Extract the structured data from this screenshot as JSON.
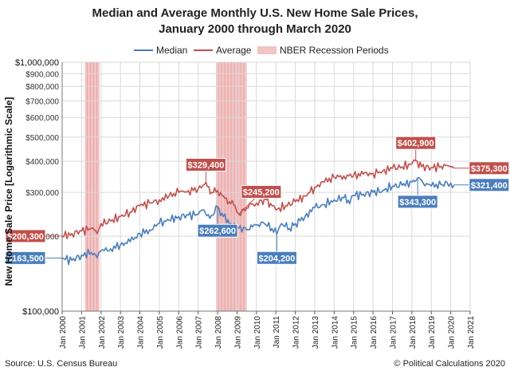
{
  "chart_data": {
    "type": "line",
    "title_line1": "Median and Average Monthly U.S. New Home Sale Prices,",
    "title_line2": "January 2000 through March 2020",
    "ylabel": "New Home Sale Price [Logarithmic Scale]",
    "xlabel": "",
    "y_scale": "log",
    "ylim": [
      100000,
      1000000
    ],
    "y_ticks": [
      {
        "value": 100000,
        "label": "$100,000"
      },
      {
        "value": 200000,
        "label": "$200,000"
      },
      {
        "value": 300000,
        "label": "$300,000"
      },
      {
        "value": 400000,
        "label": "$400,000"
      },
      {
        "value": 500000,
        "label": "$500,000"
      },
      {
        "value": 600000,
        "label": "$600,000"
      },
      {
        "value": 700000,
        "label": "$700,000"
      },
      {
        "value": 800000,
        "label": "$800,000"
      },
      {
        "value": 900000,
        "label": "$900,000"
      },
      {
        "value": 1000000,
        "label": "$1,000,000"
      }
    ],
    "x_ticks": [
      "Jan 2000",
      "Jan 2001",
      "Jan 2002",
      "Jan 2003",
      "Jan 2004",
      "Jan 2005",
      "Jan 2006",
      "Jan 2007",
      "Jan 2008",
      "Jan 2009",
      "Jan 2010",
      "Jan 2011",
      "Jan 2012",
      "Jan 2013",
      "Jan 2014",
      "Jan 2015",
      "Jan 2016",
      "Jan 2017",
      "Jan 2018",
      "Jan 2019",
      "Jan 2020",
      "Jan 2021"
    ],
    "xlim": [
      2000.0,
      2021.0
    ],
    "grid": true,
    "legend_position": "top",
    "legend": [
      "Median",
      "Average",
      "NBER Recession Periods"
    ],
    "recessions": [
      {
        "start": 2001.17,
        "end": 2001.92
      },
      {
        "start": 2007.92,
        "end": 2009.5
      }
    ],
    "series": [
      {
        "name": "Median",
        "color": "#4a7ebb",
        "points": [
          [
            2000.0,
            163500
          ],
          [
            2000.5,
            160000
          ],
          [
            2001.0,
            168000
          ],
          [
            2001.5,
            172000
          ],
          [
            2001.8,
            164000
          ],
          [
            2002.0,
            175000
          ],
          [
            2002.5,
            178000
          ],
          [
            2003.0,
            185000
          ],
          [
            2003.5,
            190000
          ],
          [
            2004.0,
            205000
          ],
          [
            2004.5,
            212000
          ],
          [
            2005.0,
            225000
          ],
          [
            2005.5,
            232000
          ],
          [
            2006.0,
            240000
          ],
          [
            2006.5,
            243000
          ],
          [
            2007.0,
            245000
          ],
          [
            2007.3,
            255000
          ],
          [
            2007.6,
            236000
          ],
          [
            2008.0,
            262600
          ],
          [
            2008.3,
            240000
          ],
          [
            2008.7,
            225000
          ],
          [
            2009.0,
            218000
          ],
          [
            2009.5,
            212000
          ],
          [
            2009.8,
            218000
          ],
          [
            2010.0,
            222000
          ],
          [
            2010.4,
            225000
          ],
          [
            2010.8,
            215000
          ],
          [
            2011.05,
            204200
          ],
          [
            2011.3,
            225000
          ],
          [
            2011.7,
            215000
          ],
          [
            2012.0,
            225000
          ],
          [
            2012.5,
            240000
          ],
          [
            2013.0,
            260000
          ],
          [
            2013.5,
            268000
          ],
          [
            2014.0,
            280000
          ],
          [
            2014.5,
            285000
          ],
          [
            2014.8,
            270000
          ],
          [
            2015.0,
            292000
          ],
          [
            2015.5,
            295000
          ],
          [
            2016.0,
            300000
          ],
          [
            2016.5,
            305000
          ],
          [
            2017.0,
            318000
          ],
          [
            2017.5,
            320000
          ],
          [
            2018.0,
            330000
          ],
          [
            2018.3,
            343300
          ],
          [
            2018.6,
            325000
          ],
          [
            2019.0,
            318000
          ],
          [
            2019.5,
            322000
          ],
          [
            2019.8,
            330000
          ],
          [
            2020.0,
            327000
          ],
          [
            2020.17,
            321400
          ]
        ]
      },
      {
        "name": "Average",
        "color": "#c0504d",
        "points": [
          [
            2000.0,
            200300
          ],
          [
            2000.5,
            205000
          ],
          [
            2001.0,
            210000
          ],
          [
            2001.5,
            215000
          ],
          [
            2001.8,
            205000
          ],
          [
            2002.0,
            225000
          ],
          [
            2002.5,
            230000
          ],
          [
            2003.0,
            240000
          ],
          [
            2003.5,
            250000
          ],
          [
            2004.0,
            265000
          ],
          [
            2004.5,
            272000
          ],
          [
            2005.0,
            280000
          ],
          [
            2005.5,
            290000
          ],
          [
            2006.0,
            300000
          ],
          [
            2006.5,
            305000
          ],
          [
            2007.0,
            310000
          ],
          [
            2007.4,
            329400
          ],
          [
            2007.7,
            300000
          ],
          [
            2008.0,
            305000
          ],
          [
            2008.3,
            290000
          ],
          [
            2008.6,
            275000
          ],
          [
            2008.9,
            265000
          ],
          [
            2009.1,
            245200
          ],
          [
            2009.5,
            260000
          ],
          [
            2009.8,
            270000
          ],
          [
            2010.0,
            272000
          ],
          [
            2010.5,
            280000
          ],
          [
            2010.8,
            265000
          ],
          [
            2011.0,
            255000
          ],
          [
            2011.5,
            265000
          ],
          [
            2012.0,
            275000
          ],
          [
            2012.5,
            290000
          ],
          [
            2013.0,
            315000
          ],
          [
            2013.5,
            330000
          ],
          [
            2014.0,
            345000
          ],
          [
            2014.5,
            350000
          ],
          [
            2015.0,
            350000
          ],
          [
            2015.5,
            355000
          ],
          [
            2016.0,
            358000
          ],
          [
            2016.5,
            365000
          ],
          [
            2017.0,
            375000
          ],
          [
            2017.5,
            380000
          ],
          [
            2018.0,
            390000
          ],
          [
            2018.2,
            402900
          ],
          [
            2018.5,
            380000
          ],
          [
            2019.0,
            378000
          ],
          [
            2019.5,
            382000
          ],
          [
            2019.8,
            385000
          ],
          [
            2020.0,
            380000
          ],
          [
            2020.17,
            375300
          ]
        ]
      }
    ],
    "annotations": [
      {
        "series": "Median",
        "label": "$163,500",
        "x": 2000.0,
        "y": 163500,
        "anchor": "left"
      },
      {
        "series": "Average",
        "label": "$200,300",
        "x": 2000.0,
        "y": 200300,
        "anchor": "left"
      },
      {
        "series": "Average",
        "label": "$329,400",
        "x": 2007.4,
        "y": 329400,
        "anchor": "above"
      },
      {
        "series": "Average",
        "label": "$245,200",
        "x": 2009.1,
        "y": 245200,
        "anchor": "above-right"
      },
      {
        "series": "Median",
        "label": "$262,600",
        "x": 2008.0,
        "y": 262600,
        "anchor": "below"
      },
      {
        "series": "Median",
        "label": "$204,200",
        "x": 2011.05,
        "y": 204200,
        "anchor": "below"
      },
      {
        "series": "Average",
        "label": "$402,900",
        "x": 2018.2,
        "y": 402900,
        "anchor": "above"
      },
      {
        "series": "Median",
        "label": "$343,300",
        "x": 2018.3,
        "y": 343300,
        "anchor": "below"
      },
      {
        "series": "Average",
        "label": "$375,300",
        "x": 2020.17,
        "y": 375300,
        "anchor": "right"
      },
      {
        "series": "Median",
        "label": "$321,400",
        "x": 2020.17,
        "y": 321400,
        "anchor": "right"
      }
    ]
  },
  "footer": {
    "source": "Source: U.S. Census Bureau",
    "credit": "© Political Calculations 2020"
  },
  "colors": {
    "median": "#4a7ebb",
    "average": "#c0504d",
    "recession": "#f2c4c4",
    "recession_stripe": "#e8a3a3",
    "grid": "#d9d9d9"
  }
}
